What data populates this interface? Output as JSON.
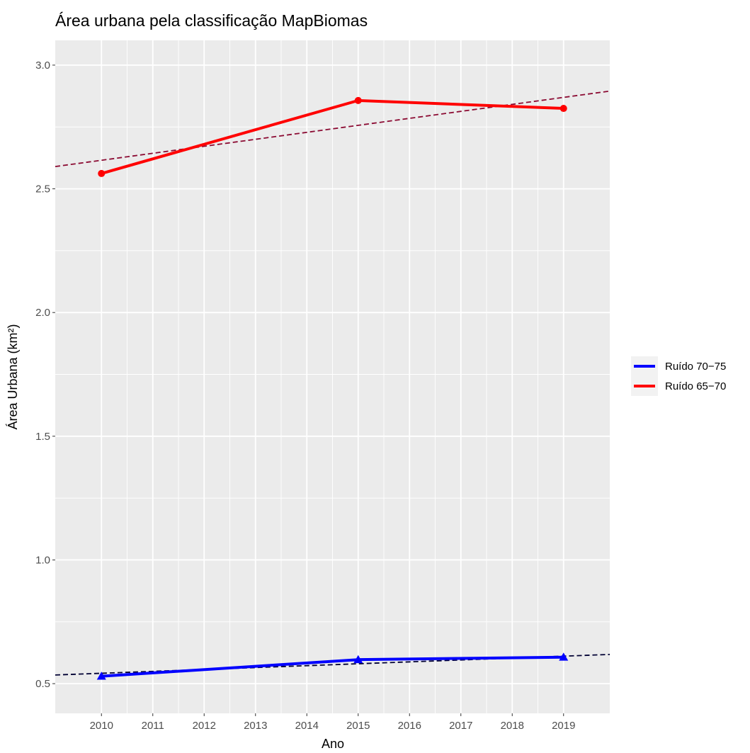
{
  "chart_data": {
    "type": "line",
    "title": "Área urbana pela classificação MapBiomas",
    "xlabel": "Ano",
    "ylabel": "Área Urbana (km²)",
    "xlim": [
      2009.1,
      2019.9
    ],
    "ylim": [
      0.38,
      3.1
    ],
    "x_ticks": [
      "2010",
      "2011",
      "2012",
      "2013",
      "2014",
      "2015",
      "2016",
      "2017",
      "2018",
      "2019"
    ],
    "y_ticks": [
      "0.5",
      "1.0",
      "1.5",
      "2.0",
      "2.5",
      "3.0"
    ],
    "grid": true,
    "legend_position": "right",
    "series": [
      {
        "name": "Ruído 70−75",
        "color": "#0000ff",
        "marker": "triangle",
        "x": [
          2010,
          2015,
          2019
        ],
        "y": [
          0.53,
          0.597,
          0.607
        ],
        "trend": {
          "color": "#000033",
          "y_start": 0.535,
          "y_end": 0.618
        }
      },
      {
        "name": "Ruído 65−70",
        "color": "#ff0000",
        "marker": "circle",
        "x": [
          2010,
          2015,
          2019
        ],
        "y": [
          2.562,
          2.857,
          2.825
        ],
        "trend": {
          "color": "#8b0a32",
          "y_start": 2.59,
          "y_end": 2.895
        }
      }
    ]
  }
}
